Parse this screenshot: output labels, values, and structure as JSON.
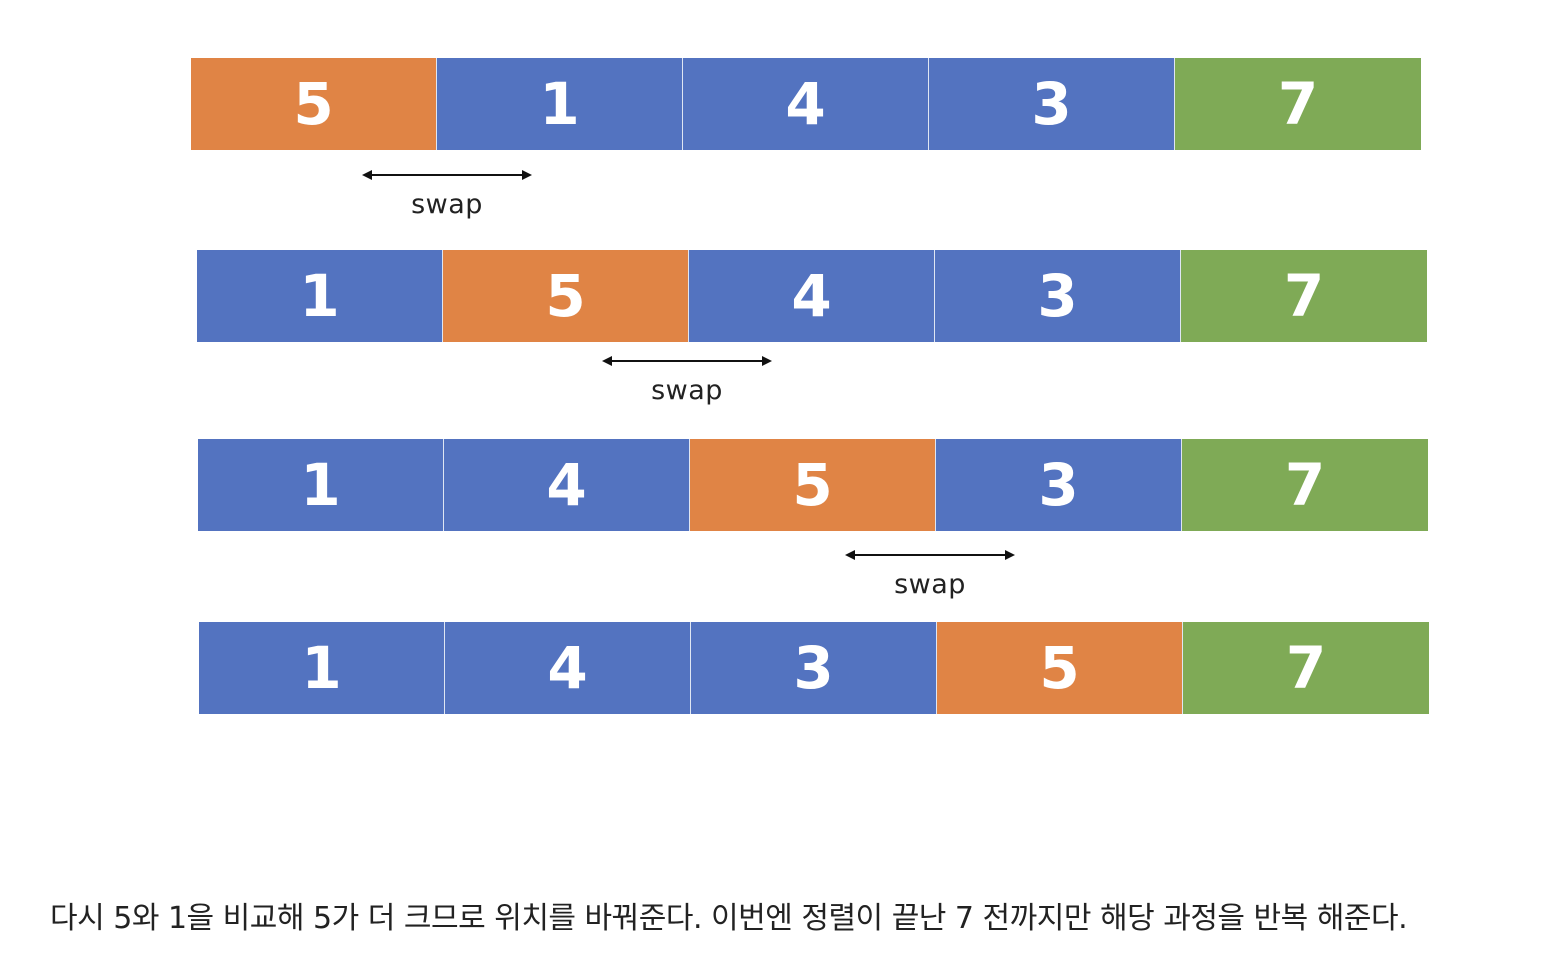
{
  "colors": {
    "current": "#E08445",
    "unsorted": "#5373C0",
    "sorted": "#7FAA56"
  },
  "rows": [
    {
      "cells": [
        {
          "value": "5",
          "state": "current"
        },
        {
          "value": "1",
          "state": "unsorted"
        },
        {
          "value": "4",
          "state": "unsorted"
        },
        {
          "value": "3",
          "state": "unsorted"
        },
        {
          "value": "7",
          "state": "sorted"
        }
      ]
    },
    {
      "cells": [
        {
          "value": "1",
          "state": "unsorted"
        },
        {
          "value": "5",
          "state": "current"
        },
        {
          "value": "4",
          "state": "unsorted"
        },
        {
          "value": "3",
          "state": "unsorted"
        },
        {
          "value": "7",
          "state": "sorted"
        }
      ]
    },
    {
      "cells": [
        {
          "value": "1",
          "state": "unsorted"
        },
        {
          "value": "4",
          "state": "unsorted"
        },
        {
          "value": "5",
          "state": "current"
        },
        {
          "value": "3",
          "state": "unsorted"
        },
        {
          "value": "7",
          "state": "sorted"
        }
      ]
    },
    {
      "cells": [
        {
          "value": "1",
          "state": "unsorted"
        },
        {
          "value": "4",
          "state": "unsorted"
        },
        {
          "value": "3",
          "state": "unsorted"
        },
        {
          "value": "5",
          "state": "current"
        },
        {
          "value": "7",
          "state": "sorted"
        }
      ]
    }
  ],
  "swaps": [
    {
      "label": "swap"
    },
    {
      "label": "swap"
    },
    {
      "label": "swap"
    }
  ],
  "caption": "다시 5와 1을 비교해 5가 더 크므로 위치를 바꿔준다. 이번엔 정렬이 끝난 7 전까지만 해당 과정을 반복 해준다."
}
